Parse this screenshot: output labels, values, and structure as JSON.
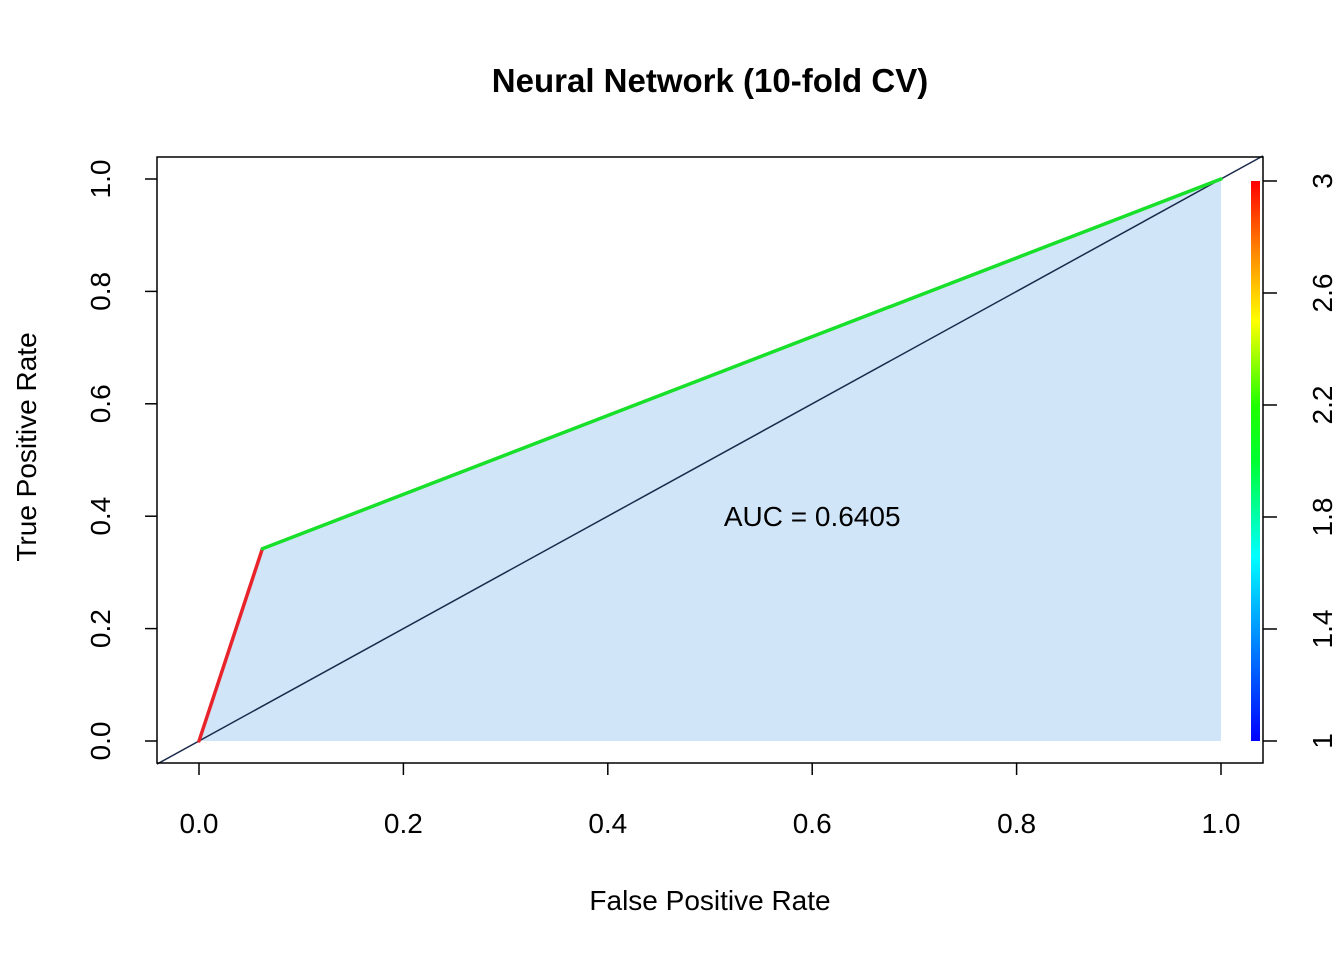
{
  "chart_data": {
    "type": "line",
    "title": "Neural Network (10-fold CV)",
    "xlabel": "False Positive Rate",
    "ylabel": "True Positive Rate",
    "xlim": [
      0,
      1
    ],
    "ylim": [
      0,
      1
    ],
    "x_ticks": [
      "0.0",
      "0.2",
      "0.4",
      "0.6",
      "0.8",
      "1.0"
    ],
    "y_ticks": [
      "0.0",
      "0.2",
      "0.4",
      "0.6",
      "0.8",
      "1.0"
    ],
    "roc_curve": {
      "x": [
        0,
        0.062,
        1
      ],
      "y": [
        0,
        0.342,
        1
      ]
    },
    "auc_annotation": "AUC = 0.6405",
    "diagonal": {
      "x": [
        0,
        1
      ],
      "y": [
        0,
        1
      ]
    },
    "colorbar": {
      "ticks": [
        "1",
        "1.4",
        "1.8",
        "2.2",
        "2.6",
        "3"
      ],
      "range": [
        1,
        3
      ]
    },
    "grid": false,
    "colors": {
      "area_fill": "#d0e5f8",
      "diagonal": "#1a2a4a",
      "segment_low": "#e8232a",
      "segment_high": "#18e02a"
    }
  }
}
